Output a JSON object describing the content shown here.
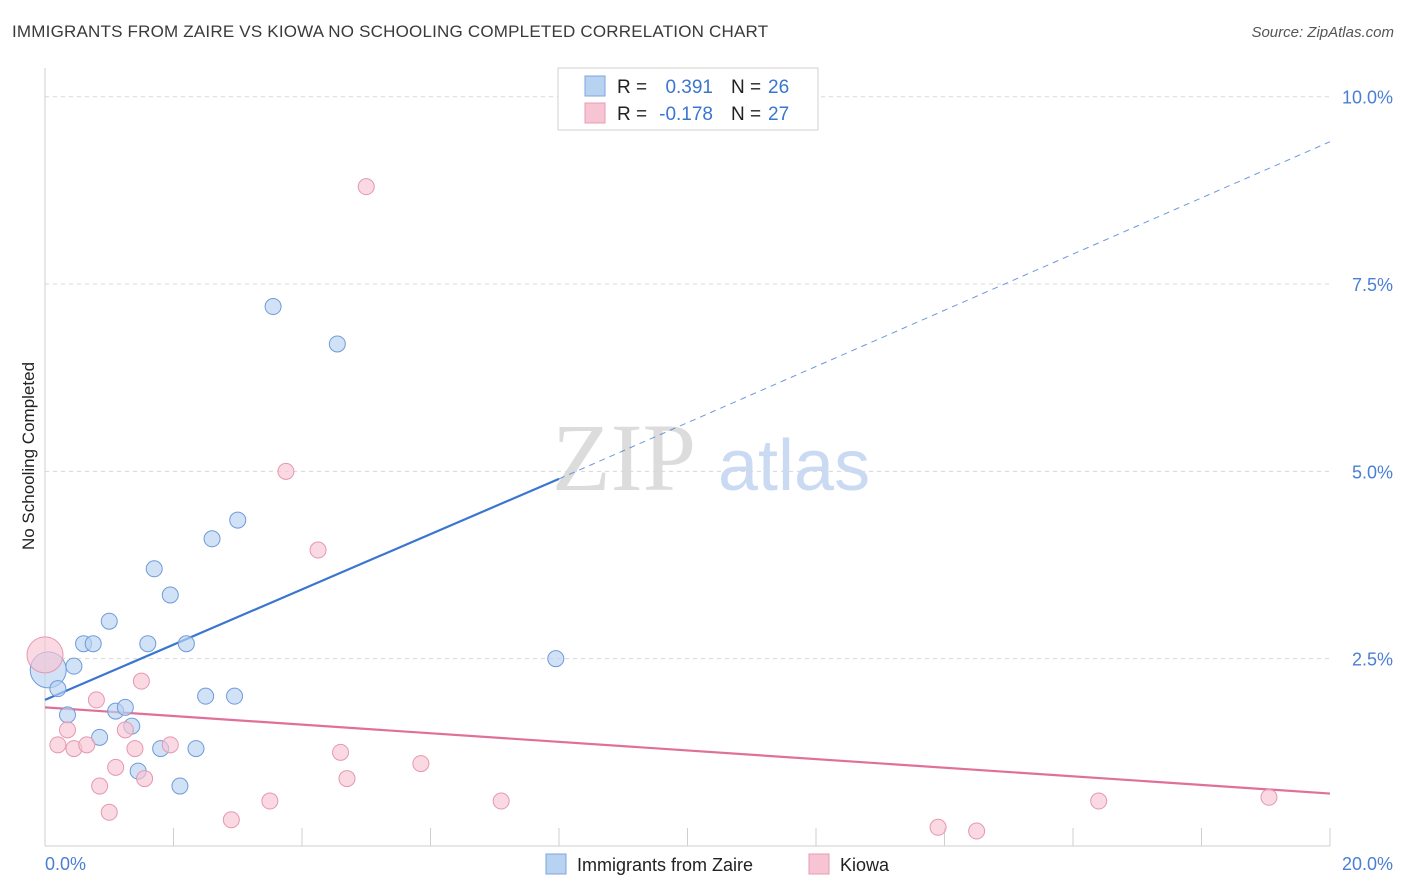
{
  "title": "IMMIGRANTS FROM ZAIRE VS KIOWA NO SCHOOLING COMPLETED CORRELATION CHART",
  "source": "Source: ZipAtlas.com",
  "watermark": {
    "zip": "ZIP",
    "atlas": "atlas"
  },
  "colors": {
    "blue": "#3a76d0",
    "blue_fill": "#b8d2f2",
    "pink": "#e0709a",
    "pink_fill": "#f7c4d4",
    "grid": "#d8d8d8",
    "tick_text": "#4a7fd4"
  },
  "legend": {
    "rows": [
      {
        "r_label": "R =",
        "r_value": "0.391",
        "n_label": "N =",
        "n_value": "26",
        "color": "blue"
      },
      {
        "r_label": "R =",
        "r_value": "-0.178",
        "n_label": "N =",
        "n_value": "27",
        "color": "pink"
      }
    ]
  },
  "chart_data": {
    "type": "scatter",
    "title": "IMMIGRANTS FROM ZAIRE VS KIOWA NO SCHOOLING COMPLETED CORRELATION CHART",
    "xlabel": "",
    "ylabel": "No Schooling Completed",
    "xlim": [
      0,
      20
    ],
    "ylim": [
      0,
      10.25
    ],
    "x_tick_labels": [
      "0.0%",
      "20.0%"
    ],
    "y_ticks": [
      2.5,
      5.0,
      7.5,
      10.0
    ],
    "y_tick_labels": [
      "2.5%",
      "5.0%",
      "7.5%",
      "10.0%"
    ],
    "grid": true,
    "legend_position": "top-center",
    "series": [
      {
        "name": "Immigrants from Zaire",
        "color": "blue",
        "points": [
          [
            0.05,
            2.35
          ],
          [
            0.2,
            2.1
          ],
          [
            0.35,
            1.75
          ],
          [
            0.45,
            2.4
          ],
          [
            0.6,
            2.7
          ],
          [
            0.75,
            2.7
          ],
          [
            0.85,
            1.45
          ],
          [
            1.0,
            3.0
          ],
          [
            1.1,
            1.8
          ],
          [
            1.25,
            1.85
          ],
          [
            1.35,
            1.6
          ],
          [
            1.45,
            1.0
          ],
          [
            1.6,
            2.7
          ],
          [
            1.7,
            3.7
          ],
          [
            1.8,
            1.3
          ],
          [
            1.95,
            3.35
          ],
          [
            2.1,
            0.8
          ],
          [
            2.2,
            2.7
          ],
          [
            2.35,
            1.3
          ],
          [
            2.5,
            2.0
          ],
          [
            2.6,
            4.1
          ],
          [
            2.95,
            2.0
          ],
          [
            3.0,
            4.35
          ],
          [
            3.55,
            7.2
          ],
          [
            4.55,
            6.7
          ],
          [
            7.95,
            2.5
          ]
        ],
        "trend": {
          "x": [
            0,
            8
          ],
          "y": [
            1.95,
            4.9
          ],
          "dashed_extension_to": [
            20,
            9.4
          ]
        }
      },
      {
        "name": "Kiowa",
        "color": "pink",
        "points": [
          [
            0.0,
            2.55
          ],
          [
            0.2,
            1.35
          ],
          [
            0.35,
            1.55
          ],
          [
            0.45,
            1.3
          ],
          [
            0.65,
            1.35
          ],
          [
            0.8,
            1.95
          ],
          [
            0.85,
            0.8
          ],
          [
            1.0,
            0.45
          ],
          [
            1.1,
            1.05
          ],
          [
            1.25,
            1.55
          ],
          [
            1.4,
            1.3
          ],
          [
            1.5,
            2.2
          ],
          [
            1.55,
            0.9
          ],
          [
            1.95,
            1.35
          ],
          [
            2.9,
            0.35
          ],
          [
            3.5,
            0.6
          ],
          [
            3.75,
            5.0
          ],
          [
            4.25,
            3.95
          ],
          [
            4.6,
            1.25
          ],
          [
            4.7,
            0.9
          ],
          [
            5.0,
            8.8
          ],
          [
            5.85,
            1.1
          ],
          [
            7.1,
            0.6
          ],
          [
            13.9,
            0.25
          ],
          [
            14.5,
            0.2
          ],
          [
            16.4,
            0.6
          ],
          [
            19.05,
            0.65
          ]
        ],
        "trend": {
          "x": [
            0,
            20
          ],
          "y": [
            1.85,
            0.7
          ]
        }
      }
    ]
  }
}
